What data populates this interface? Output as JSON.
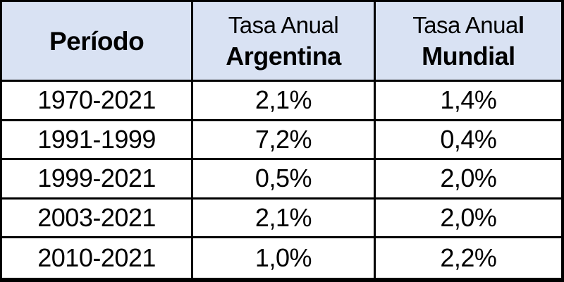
{
  "chart_data": {
    "type": "table",
    "title": "",
    "columns": [
      "Período",
      "Tasa Anual Argentina",
      "Tasa Anual Mundial"
    ],
    "rows": [
      [
        "1970-2021",
        "2,1%",
        "1,4%"
      ],
      [
        "1991-1999",
        "7,2%",
        "0,4%"
      ],
      [
        "1999-2021",
        "0,5%",
        "2,0%"
      ],
      [
        "2003-2021",
        "2,1%",
        "2,0%"
      ],
      [
        "2010-2021",
        "1,0%",
        "2,2%"
      ]
    ]
  },
  "header": {
    "col1": "Período",
    "col2_line1": "Tasa Anual",
    "col2_line2": "Argentina",
    "col3_line1_regular": "Tasa Anua",
    "col3_line1_bold": "l",
    "col3_line2": "Mundial"
  },
  "colors": {
    "header_bg": "#D9E2F3",
    "border": "#000000",
    "row_bg": "#FFFFFF",
    "text": "#000000"
  }
}
